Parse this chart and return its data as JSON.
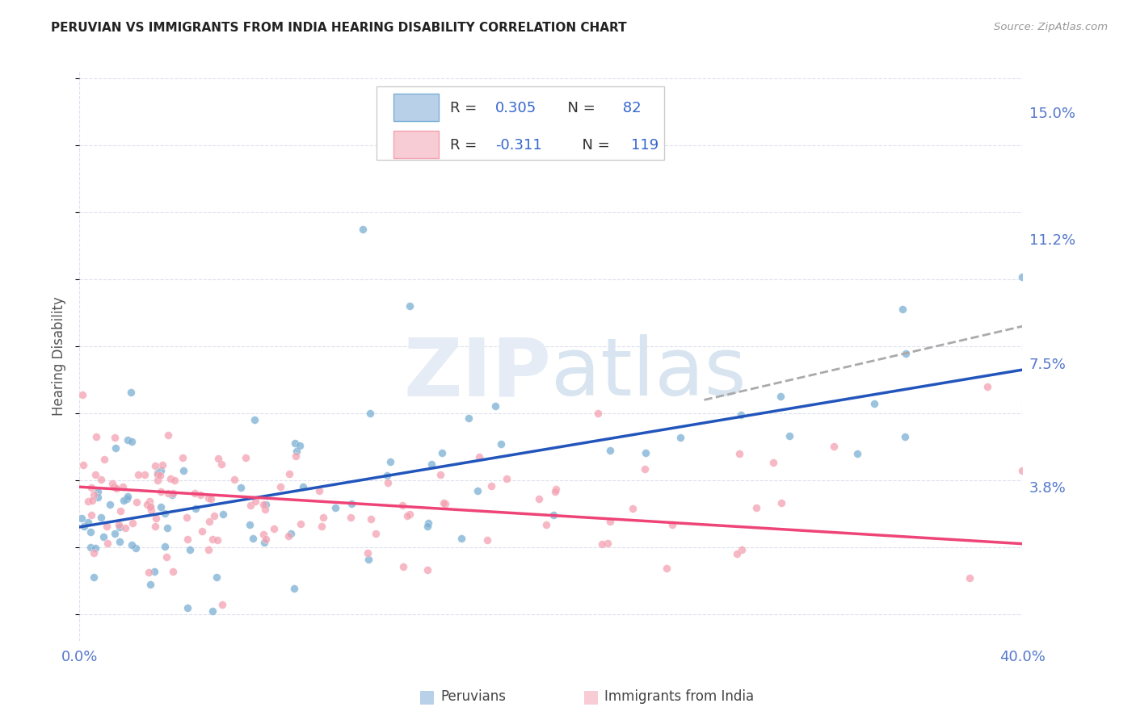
{
  "title": "PERUVIAN VS IMMIGRANTS FROM INDIA HEARING DISABILITY CORRELATION CHART",
  "source": "Source: ZipAtlas.com",
  "ylabel": "Hearing Disability",
  "right_ytick_labels": [
    "15.0%",
    "11.2%",
    "7.5%",
    "3.8%"
  ],
  "right_ytick_values": [
    0.15,
    0.112,
    0.075,
    0.038
  ],
  "bottom_legend_labels": [
    "Peruvians",
    "Immigrants from India"
  ],
  "blue_color": "#7bafd4",
  "blue_light": "#b8d0e8",
  "blue_line_color": "#2255bb",
  "pink_color": "#f4a0b0",
  "pink_light": "#f8ccd4",
  "pink_line_color": "#ee4477",
  "gray_dash_color": "#aaaaaa",
  "axis_label_color": "#5577cc",
  "background_color": "#ffffff",
  "grid_color": "#dde0ee",
  "xmin": 0.0,
  "xmax": 0.4,
  "ymin": -0.008,
  "ymax": 0.162,
  "blue_line": [
    [
      0.0,
      0.026
    ],
    [
      0.4,
      0.073
    ]
  ],
  "pink_line": [
    [
      0.0,
      0.038
    ],
    [
      0.4,
      0.021
    ]
  ],
  "gray_dash_line": [
    [
      0.265,
      0.064
    ],
    [
      0.4,
      0.086
    ]
  ]
}
